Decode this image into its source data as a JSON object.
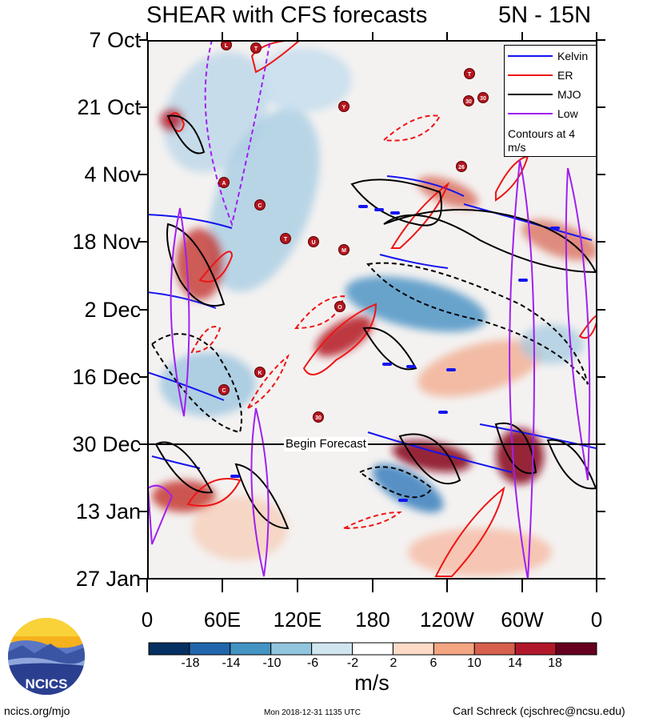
{
  "title_left": "SHEAR with CFS forecasts",
  "title_right": "5N - 15N",
  "yticks": [
    "7 Oct",
    "21 Oct",
    "4 Nov",
    "18 Nov",
    "2 Dec",
    "16 Dec",
    "30 Dec",
    "13 Jan",
    "27 Jan"
  ],
  "xticks": [
    "0",
    "60E",
    "120E",
    "180",
    "120W",
    "60W",
    "0"
  ],
  "forecast_label": "Begin Forecast",
  "legend": {
    "items": [
      {
        "label": "Kelvin",
        "color": "#1515ee"
      },
      {
        "label": "ER",
        "color": "#ee1515"
      },
      {
        "label": "MJO",
        "color": "#000000"
      },
      {
        "label": "Low",
        "color": "#a020f0"
      }
    ],
    "note": "Contours at 4 m/s"
  },
  "colorbar": {
    "labels": [
      "-18",
      "-14",
      "-10",
      "-6",
      "-2",
      "2",
      "6",
      "10",
      "14",
      "18"
    ],
    "colors": [
      "#053061",
      "#2166ac",
      "#4393c3",
      "#92c5de",
      "#d1e5f0",
      "#ffffff",
      "#fddbc7",
      "#f4a582",
      "#d6604d",
      "#b2182b",
      "#67001f"
    ],
    "units": "m/s"
  },
  "logo_text": "NCICS",
  "footer": {
    "left": "ncics.org/mjo",
    "center": "Mon 2018-12-31 1135 UTC",
    "right": "Carl Schreck (cjschrec@ncsu.edu)"
  },
  "storm_markers": [
    "L",
    "T",
    "Y",
    "A",
    "C",
    "T",
    "U",
    "M",
    "O",
    "C",
    "K",
    "30",
    "26",
    "30",
    "T",
    "30"
  ],
  "chart_data": {
    "type": "heatmap",
    "title": "SHEAR with CFS forecasts",
    "subtitle": "5N - 15N",
    "x_range": [
      "0",
      "0"
    ],
    "y_range": [
      "7 Oct",
      "27 Jan"
    ],
    "x_tick_labels": [
      "0",
      "60E",
      "120E",
      "180",
      "120W",
      "60W",
      "0"
    ],
    "y_tick_labels": [
      "7 Oct",
      "21 Oct",
      "4 Nov",
      "18 Nov",
      "2 Dec",
      "16 Dec",
      "30 Dec",
      "13 Jan",
      "27 Jan"
    ],
    "color_levels": [
      -18,
      -14,
      -10,
      -6,
      -2,
      2,
      6,
      10,
      14,
      18
    ],
    "units": "m/s",
    "forecast_start": "30 Dec",
    "contour_interval": "4 m/s",
    "series": [
      {
        "name": "Kelvin",
        "color": "#1515ee"
      },
      {
        "name": "ER",
        "color": "#ee1515"
      },
      {
        "name": "MJO",
        "color": "#000000"
      },
      {
        "name": "Low",
        "color": "#a020f0"
      }
    ],
    "legend_position": "top-right"
  }
}
